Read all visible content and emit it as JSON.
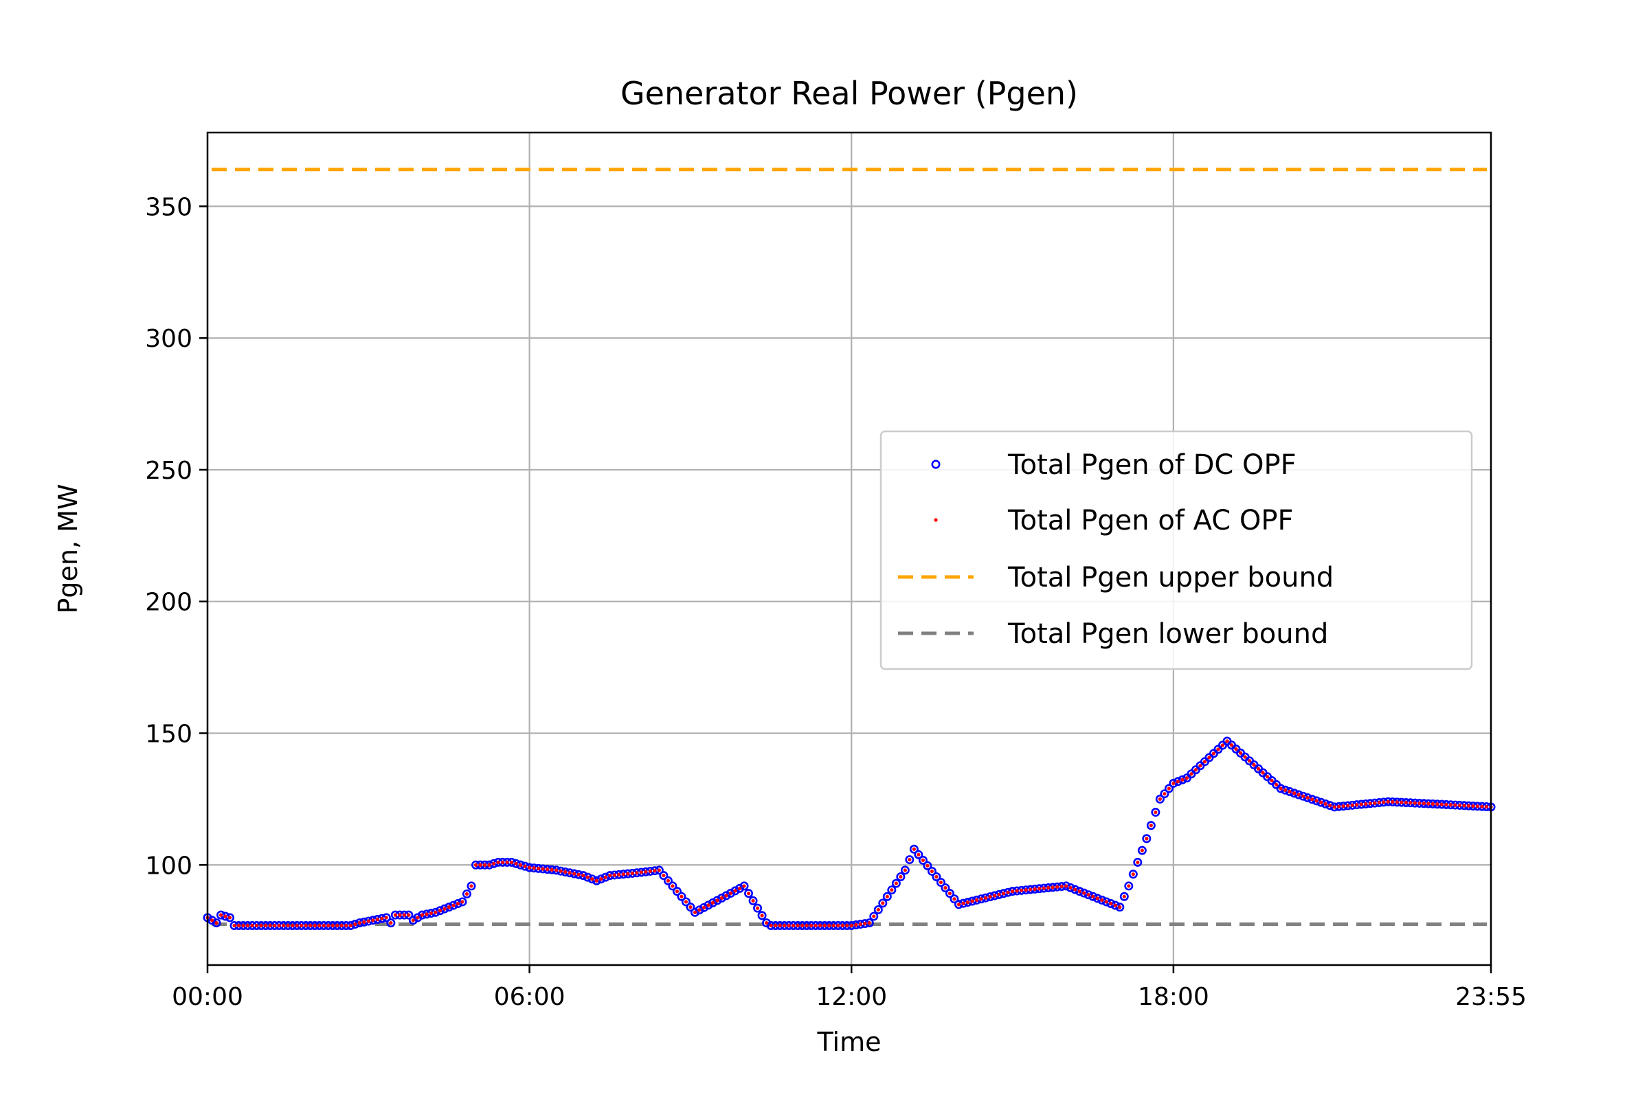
{
  "chart_data": {
    "type": "scatter",
    "title": "Generator Real Power (Pgen)",
    "xlabel": "Time",
    "ylabel": "Pgen, MW",
    "x_unit": "time of day (HH:MM)",
    "xlim": [
      "00:00",
      "23:55"
    ],
    "ylim": [
      62,
      378
    ],
    "xticks": [
      "00:00",
      "06:00",
      "12:00",
      "18:00",
      "23:55"
    ],
    "yticks": [
      100,
      150,
      200,
      250,
      300,
      350
    ],
    "grid": true,
    "legend_position": "center-right",
    "series": [
      {
        "name": "Total Pgen of DC OPF",
        "style": "open-circle",
        "color": "#0000ff",
        "points": [
          [
            "00:00",
            80
          ],
          [
            "00:10",
            78
          ],
          [
            "00:15",
            81
          ],
          [
            "00:25",
            80
          ],
          [
            "00:30",
            77
          ],
          [
            "01:00",
            77
          ],
          [
            "02:00",
            77
          ],
          [
            "02:40",
            77
          ],
          [
            "02:50",
            78
          ],
          [
            "03:20",
            80
          ],
          [
            "03:25",
            78
          ],
          [
            "03:30",
            81
          ],
          [
            "03:45",
            81
          ],
          [
            "03:50",
            79
          ],
          [
            "04:00",
            81
          ],
          [
            "04:15",
            82
          ],
          [
            "04:30",
            84
          ],
          [
            "04:45",
            86
          ],
          [
            "04:55",
            92
          ],
          [
            "05:00",
            100
          ],
          [
            "05:15",
            100
          ],
          [
            "05:25",
            101
          ],
          [
            "05:40",
            101
          ],
          [
            "06:00",
            99
          ],
          [
            "06:30",
            98
          ],
          [
            "07:00",
            96
          ],
          [
            "07:15",
            94
          ],
          [
            "07:30",
            96
          ],
          [
            "08:00",
            97
          ],
          [
            "08:25",
            98
          ],
          [
            "09:05",
            82
          ],
          [
            "10:00",
            92
          ],
          [
            "10:25",
            78
          ],
          [
            "10:30",
            77
          ],
          [
            "12:00",
            77
          ],
          [
            "12:20",
            78
          ],
          [
            "13:00",
            98
          ],
          [
            "13:10",
            106
          ],
          [
            "14:00",
            85
          ],
          [
            "15:00",
            90
          ],
          [
            "16:00",
            92
          ],
          [
            "17:00",
            84
          ],
          [
            "17:10",
            92
          ],
          [
            "17:30",
            110
          ],
          [
            "17:45",
            125
          ],
          [
            "18:00",
            131
          ],
          [
            "18:15",
            133
          ],
          [
            "19:00",
            147
          ],
          [
            "20:00",
            129
          ],
          [
            "21:00",
            122
          ],
          [
            "22:00",
            124
          ],
          [
            "23:00",
            123
          ],
          [
            "23:55",
            122
          ]
        ]
      },
      {
        "name": "Total Pgen of AC OPF",
        "style": "dot",
        "color": "#ff0000",
        "points": [
          [
            "00:00",
            80
          ],
          [
            "00:10",
            78
          ],
          [
            "00:15",
            81
          ],
          [
            "00:25",
            80
          ],
          [
            "00:30",
            77
          ],
          [
            "01:00",
            77
          ],
          [
            "02:00",
            77
          ],
          [
            "02:40",
            77
          ],
          [
            "02:50",
            78
          ],
          [
            "03:20",
            80
          ],
          [
            "03:25",
            78
          ],
          [
            "03:30",
            81
          ],
          [
            "03:45",
            81
          ],
          [
            "03:50",
            79
          ],
          [
            "04:00",
            81
          ],
          [
            "04:15",
            82
          ],
          [
            "04:30",
            84
          ],
          [
            "04:45",
            86
          ],
          [
            "04:55",
            92
          ],
          [
            "05:00",
            100
          ],
          [
            "05:15",
            100
          ],
          [
            "05:25",
            101
          ],
          [
            "05:40",
            101
          ],
          [
            "06:00",
            99
          ],
          [
            "06:30",
            98
          ],
          [
            "07:00",
            96
          ],
          [
            "07:15",
            94
          ],
          [
            "07:30",
            96
          ],
          [
            "08:00",
            97
          ],
          [
            "08:25",
            98
          ],
          [
            "09:05",
            82
          ],
          [
            "10:00",
            92
          ],
          [
            "10:25",
            78
          ],
          [
            "10:30",
            77
          ],
          [
            "12:00",
            77
          ],
          [
            "12:20",
            78
          ],
          [
            "13:00",
            98
          ],
          [
            "13:10",
            106
          ],
          [
            "14:00",
            85
          ],
          [
            "15:00",
            90
          ],
          [
            "16:00",
            92
          ],
          [
            "17:00",
            84
          ],
          [
            "17:10",
            92
          ],
          [
            "17:30",
            110
          ],
          [
            "17:45",
            125
          ],
          [
            "18:00",
            131
          ],
          [
            "18:15",
            133
          ],
          [
            "19:00",
            147
          ],
          [
            "20:00",
            129
          ],
          [
            "21:00",
            122
          ],
          [
            "22:00",
            124
          ],
          [
            "23:00",
            123
          ],
          [
            "23:55",
            122
          ]
        ]
      },
      {
        "name": "Total Pgen upper bound",
        "style": "dashed-line",
        "color": "#ffa500",
        "value": 364
      },
      {
        "name": "Total Pgen lower bound",
        "style": "dashed-line",
        "color": "#808080",
        "value": 77.5
      }
    ]
  }
}
